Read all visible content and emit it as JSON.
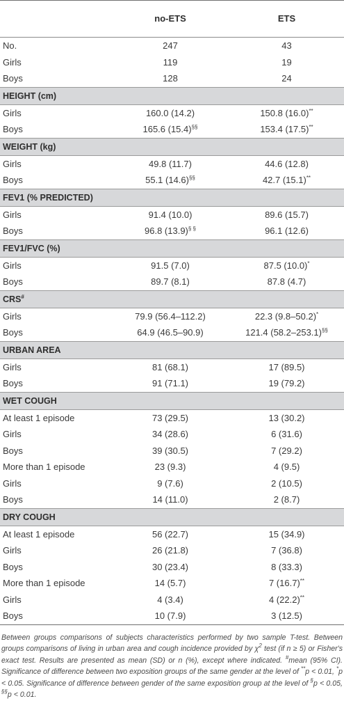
{
  "table": {
    "header": {
      "col_label": "",
      "col_no_ets": "no-ETS",
      "col_ets": "ETS"
    },
    "rows": [
      {
        "type": "row",
        "label": "No.",
        "a": "247",
        "a_sup": "",
        "b": "43",
        "b_sup": ""
      },
      {
        "type": "row",
        "label": "Girls",
        "a": "119",
        "a_sup": "",
        "b": "19",
        "b_sup": ""
      },
      {
        "type": "row",
        "label": "Boys",
        "a": "128",
        "a_sup": "",
        "b": "24",
        "b_sup": ""
      },
      {
        "type": "section",
        "label": "HEIGHT (cm)",
        "label_sup": ""
      },
      {
        "type": "row",
        "label": "Girls",
        "a": "160.0 (14.2)",
        "a_sup": "",
        "b": "150.8 (16.0)",
        "b_sup": "**"
      },
      {
        "type": "row",
        "label": "Boys",
        "a": "165.6 (15.4)",
        "a_sup": "§§",
        "b": "153.4 (17.5)",
        "b_sup": "**"
      },
      {
        "type": "section",
        "label": "WEIGHT (kg)",
        "label_sup": ""
      },
      {
        "type": "row",
        "label": "Girls",
        "a": "49.8 (11.7)",
        "a_sup": "",
        "b": "44.6 (12.8)",
        "b_sup": ""
      },
      {
        "type": "row",
        "label": "Boys",
        "a": "55.1 (14.6)",
        "a_sup": "§§",
        "b": "42.7 (15.1)",
        "b_sup": "**"
      },
      {
        "type": "section",
        "label": "FEV1 (% PREDICTED)",
        "label_sup": ""
      },
      {
        "type": "row",
        "label": "Girls",
        "a": "91.4 (10.0)",
        "a_sup": "",
        "b": "89.6 (15.7)",
        "b_sup": ""
      },
      {
        "type": "row",
        "label": "Boys",
        "a": "96.8 (13.9)",
        "a_sup": "§ §",
        "b": "96.1 (12.6)",
        "b_sup": ""
      },
      {
        "type": "section",
        "label": "FEV1/FVC (%)",
        "label_sup": ""
      },
      {
        "type": "row",
        "label": "Girls",
        "a": "91.5 (7.0)",
        "a_sup": "",
        "b": "87.5 (10.0)",
        "b_sup": "*"
      },
      {
        "type": "row",
        "label": "Boys",
        "a": "89.7 (8.1)",
        "a_sup": "",
        "b": "87.8 (4.7)",
        "b_sup": ""
      },
      {
        "type": "section",
        "label": "CRS",
        "label_sup": "#"
      },
      {
        "type": "row",
        "label": "Girls",
        "a": "79.9 (56.4–112.2)",
        "a_sup": "",
        "b": "22.3 (9.8–50.2)",
        "b_sup": "*"
      },
      {
        "type": "row",
        "label": "Boys",
        "a": "64.9 (46.5–90.9)",
        "a_sup": "",
        "b": "121.4 (58.2–253.1)",
        "b_sup": "§§"
      },
      {
        "type": "section",
        "label": "URBAN AREA",
        "label_sup": ""
      },
      {
        "type": "row",
        "label": "Girls",
        "a": "81 (68.1)",
        "a_sup": "",
        "b": "17 (89.5)",
        "b_sup": ""
      },
      {
        "type": "row",
        "label": "Boys",
        "a": "91 (71.1)",
        "a_sup": "",
        "b": "19 (79.2)",
        "b_sup": ""
      },
      {
        "type": "section",
        "label": "WET COUGH",
        "label_sup": ""
      },
      {
        "type": "row",
        "label": "At least 1 episode",
        "a": "73 (29.5)",
        "a_sup": "",
        "b": "13 (30.2)",
        "b_sup": ""
      },
      {
        "type": "row",
        "label": "Girls",
        "a": "34 (28.6)",
        "a_sup": "",
        "b": "6 (31.6)",
        "b_sup": ""
      },
      {
        "type": "row",
        "label": "Boys",
        "a": "39 (30.5)",
        "a_sup": "",
        "b": "7 (29.2)",
        "b_sup": ""
      },
      {
        "type": "row",
        "label": "More than 1 episode",
        "a": "23 (9.3)",
        "a_sup": "",
        "b": "4 (9.5)",
        "b_sup": ""
      },
      {
        "type": "row",
        "label": "Girls",
        "a": "9 (7.6)",
        "a_sup": "",
        "b": "2 (10.5)",
        "b_sup": ""
      },
      {
        "type": "row",
        "label": "Boys",
        "a": "14 (11.0)",
        "a_sup": "",
        "b": "2 (8.7)",
        "b_sup": ""
      },
      {
        "type": "section",
        "label": "DRY COUGH",
        "label_sup": ""
      },
      {
        "type": "row",
        "label": "At least 1 episode",
        "a": "56 (22.7)",
        "a_sup": "",
        "b": "15 (34.9)",
        "b_sup": ""
      },
      {
        "type": "row",
        "label": "Girls",
        "a": "26 (21.8)",
        "a_sup": "",
        "b": "7 (36.8)",
        "b_sup": ""
      },
      {
        "type": "row",
        "label": "Boys",
        "a": "30 (23.4)",
        "a_sup": "",
        "b": "8 (33.3)",
        "b_sup": ""
      },
      {
        "type": "row",
        "label": "More than 1 episode",
        "a": "14 (5.7)",
        "a_sup": "",
        "b": "7 (16.7)",
        "b_sup": "**"
      },
      {
        "type": "row",
        "label": "Girls",
        "a": "4 (3.4)",
        "a_sup": "",
        "b": "4 (22.2)",
        "b_sup": "**"
      },
      {
        "type": "row",
        "label": "Boys",
        "a": "10 (7.9)",
        "a_sup": "",
        "b": "3 (12.5)",
        "b_sup": ""
      }
    ]
  },
  "footnote": [
    {
      "t": "Between groups comparisons of subjects characteristics performed by two sample T-test. Between groups comparisons of living in urban area and cough incidence provided by χ"
    },
    {
      "t": "2",
      "sup": true
    },
    {
      "t": " test (if n ≥ 5) or Fisher's exact test. Results are presented as mean (SD) or n (%), except where indicated. "
    },
    {
      "t": "#",
      "sup": true
    },
    {
      "t": "mean (95% CI). Significance of difference between two exposition groups of the same gender at the level of "
    },
    {
      "t": "**",
      "sup": true
    },
    {
      "t": "p < 0.01, "
    },
    {
      "t": "*",
      "sup": true
    },
    {
      "t": "p < 0.05. Significance of difference between gender of the same exposition group at the level of "
    },
    {
      "t": "§",
      "sup": true
    },
    {
      "t": "p < 0.05, "
    },
    {
      "t": "§§",
      "sup": true
    },
    {
      "t": "p < 0.01."
    }
  ]
}
